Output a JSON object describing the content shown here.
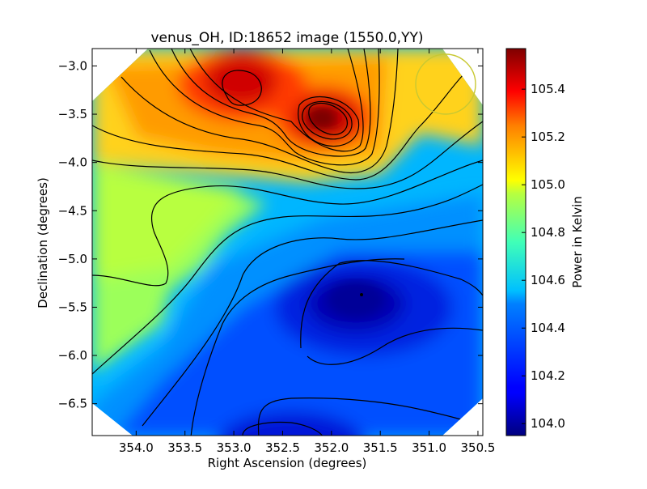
{
  "chart_data": {
    "type": "heatmap",
    "title": "venus_OH, ID:18652 image (1550.0,YY)",
    "xlabel": "Right Ascension (degrees)",
    "ylabel": "Declination (degrees)",
    "xlim": [
      354.45,
      350.45
    ],
    "ylim": [
      -6.83,
      -2.82
    ],
    "x_ticks": [
      354.0,
      353.5,
      353.0,
      352.5,
      352.0,
      351.5,
      351.0,
      350.5
    ],
    "x_tick_labels": [
      "354.0",
      "353.5",
      "353.0",
      "352.5",
      "352.0",
      "351.5",
      "351.0",
      "350.5"
    ],
    "y_ticks": [
      -3.0,
      -3.5,
      -4.0,
      -4.5,
      -5.0,
      -5.5,
      -6.0,
      -6.5
    ],
    "y_tick_labels": [
      "−3.0",
      "−3.5",
      "−4.0",
      "−4.5",
      "−5.0",
      "−5.5",
      "−6.0",
      "−6.5"
    ],
    "colorbar": {
      "label": "Power in Kelvin",
      "range": [
        103.95,
        105.57
      ],
      "ticks": [
        104.0,
        104.2,
        104.4,
        104.6,
        104.8,
        105.0,
        105.2,
        105.4
      ],
      "tick_labels": [
        "104.0",
        "104.2",
        "104.4",
        "104.6",
        "104.8",
        "105.0",
        "105.2",
        "105.4"
      ],
      "colormap": "jet"
    },
    "features": [
      {
        "kind": "max",
        "ra": 353.0,
        "dec": -3.25,
        "value": 105.45
      },
      {
        "kind": "max",
        "ra": 351.97,
        "dec": -3.6,
        "value": 105.55
      },
      {
        "kind": "min",
        "ra": 351.7,
        "dec": -5.38,
        "value": 103.97
      },
      {
        "kind": "min",
        "ra": 352.2,
        "dec": -6.85,
        "value": 104.15
      }
    ],
    "beam_circle": {
      "ra": 350.8,
      "dec": -3.2,
      "radius_deg": 0.33,
      "color": "#c8c832"
    },
    "grid": false,
    "legend": "none"
  }
}
